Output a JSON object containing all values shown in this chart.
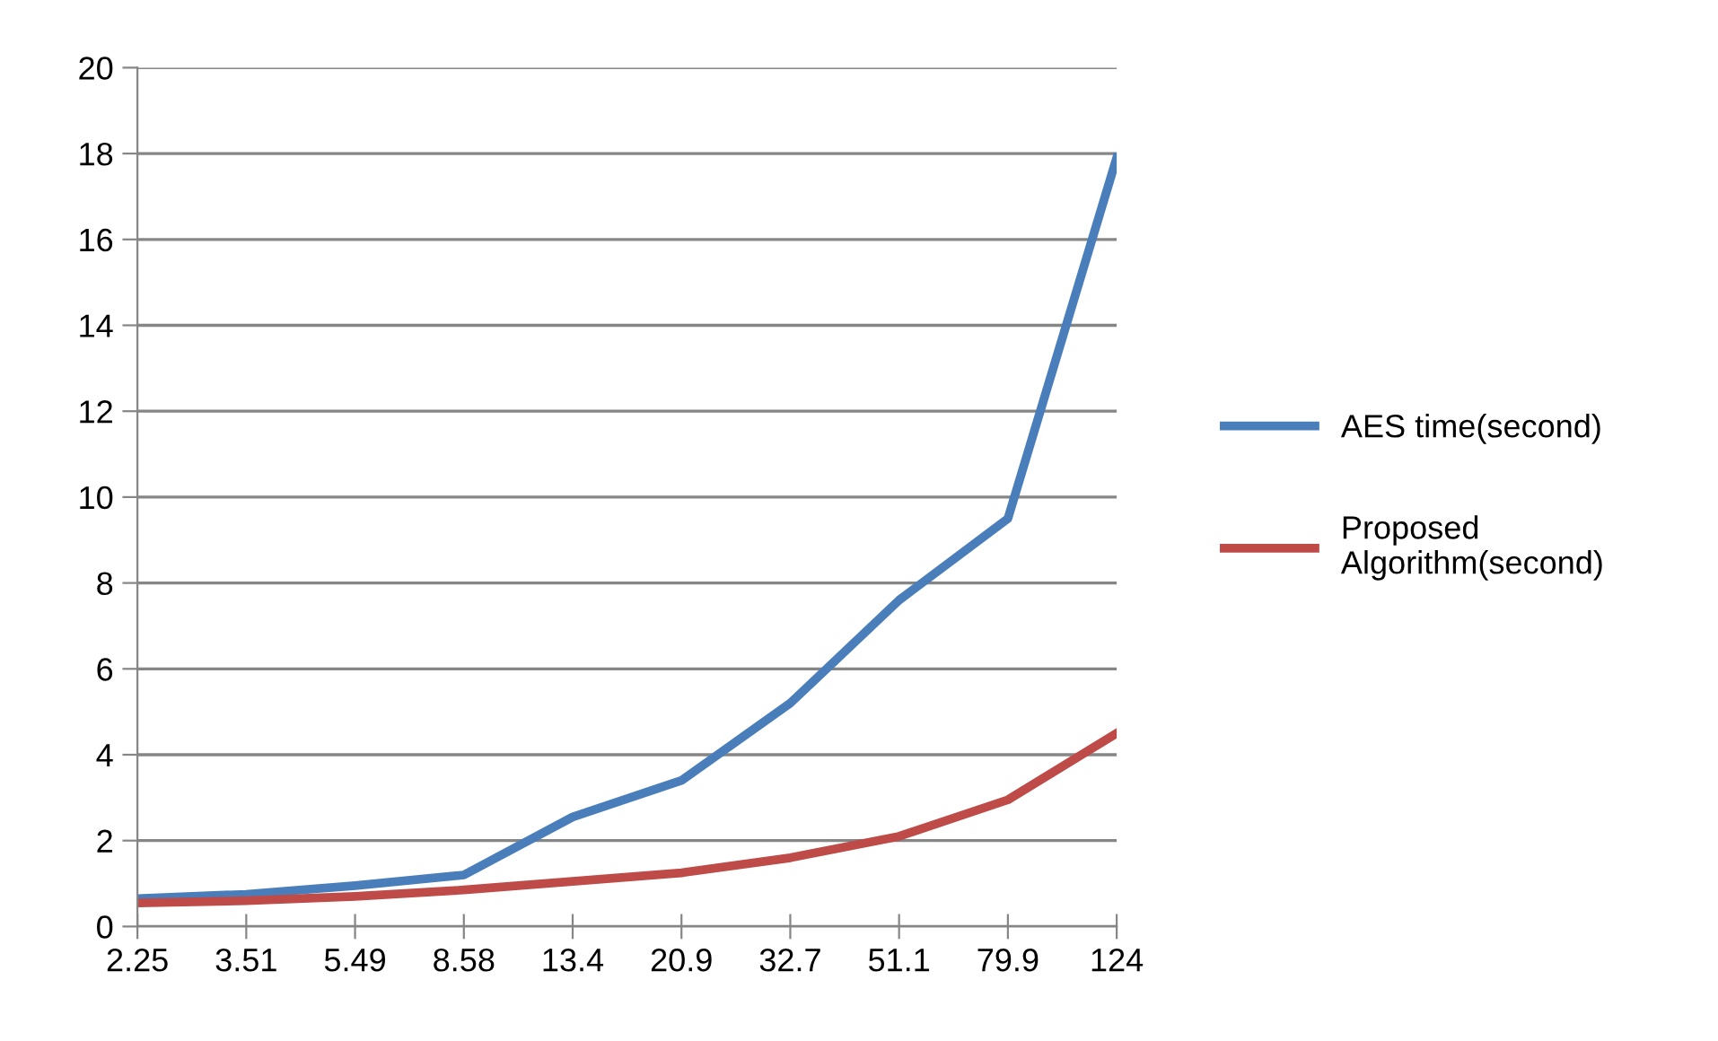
{
  "chart_data": {
    "type": "line",
    "categories": [
      "2.25",
      "3.51",
      "5.49",
      "8.58",
      "13.4",
      "20.9",
      "32.7",
      "51.1",
      "79.9",
      "124"
    ],
    "series": [
      {
        "name": "AES time(second)",
        "color": "#4a7ebb",
        "values": [
          0.65,
          0.75,
          0.95,
          1.2,
          2.55,
          3.4,
          5.2,
          7.6,
          9.5,
          17.9
        ]
      },
      {
        "name": "Proposed Algorithm(second)",
        "color": "#be4b48",
        "values": [
          0.55,
          0.6,
          0.7,
          0.85,
          1.05,
          1.25,
          1.6,
          2.1,
          2.95,
          4.5
        ]
      }
    ],
    "ylim": [
      0,
      20
    ],
    "yticks": [
      0,
      2,
      4,
      6,
      8,
      10,
      12,
      14,
      16,
      18,
      20
    ],
    "grid": "y",
    "legend": "right",
    "marker": "none",
    "line_style": "solid"
  }
}
